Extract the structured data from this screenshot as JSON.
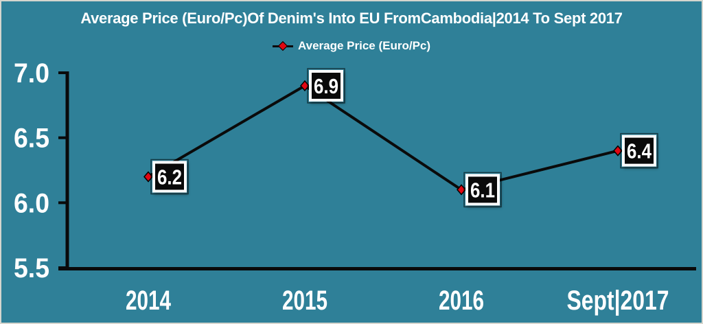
{
  "frame": {
    "background": "#2F8098",
    "border_color": "#D6D6CE"
  },
  "chart_data": {
    "type": "line",
    "title": "Average Price (Euro/Pc)Of Denim's Into EU FromCambodia|2014 To Sept 2017",
    "categories": [
      "2014",
      "2015",
      "2016",
      "Sept|2017"
    ],
    "series": [
      {
        "name": "Average Price (Euro/Pc)",
        "values": [
          6.2,
          6.9,
          6.1,
          6.4
        ],
        "data_labels": [
          "6.2",
          "6.9",
          "6.1",
          "6.4"
        ]
      }
    ],
    "ylim": [
      5.5,
      7.0
    ],
    "yticks": [
      7.0,
      6.5,
      6.0,
      5.5
    ],
    "ytick_labels": [
      "7.0",
      "6.5",
      "6.0",
      "5.5"
    ],
    "xlabel": "",
    "ylabel": "",
    "grid": false,
    "legend_position": "top-center",
    "colors": {
      "background": "#2F8098",
      "line": "#0A0A0A",
      "marker_fill": "#E00713",
      "marker_stroke": "#000000",
      "axis": "#0A0A0A",
      "axis_text": "#FFFFFF",
      "title_text": "#FFFFFF",
      "label_box_fill": "#0A0A0A",
      "label_box_border": "#FFFFFF",
      "label_text": "#FFFFFF"
    }
  }
}
